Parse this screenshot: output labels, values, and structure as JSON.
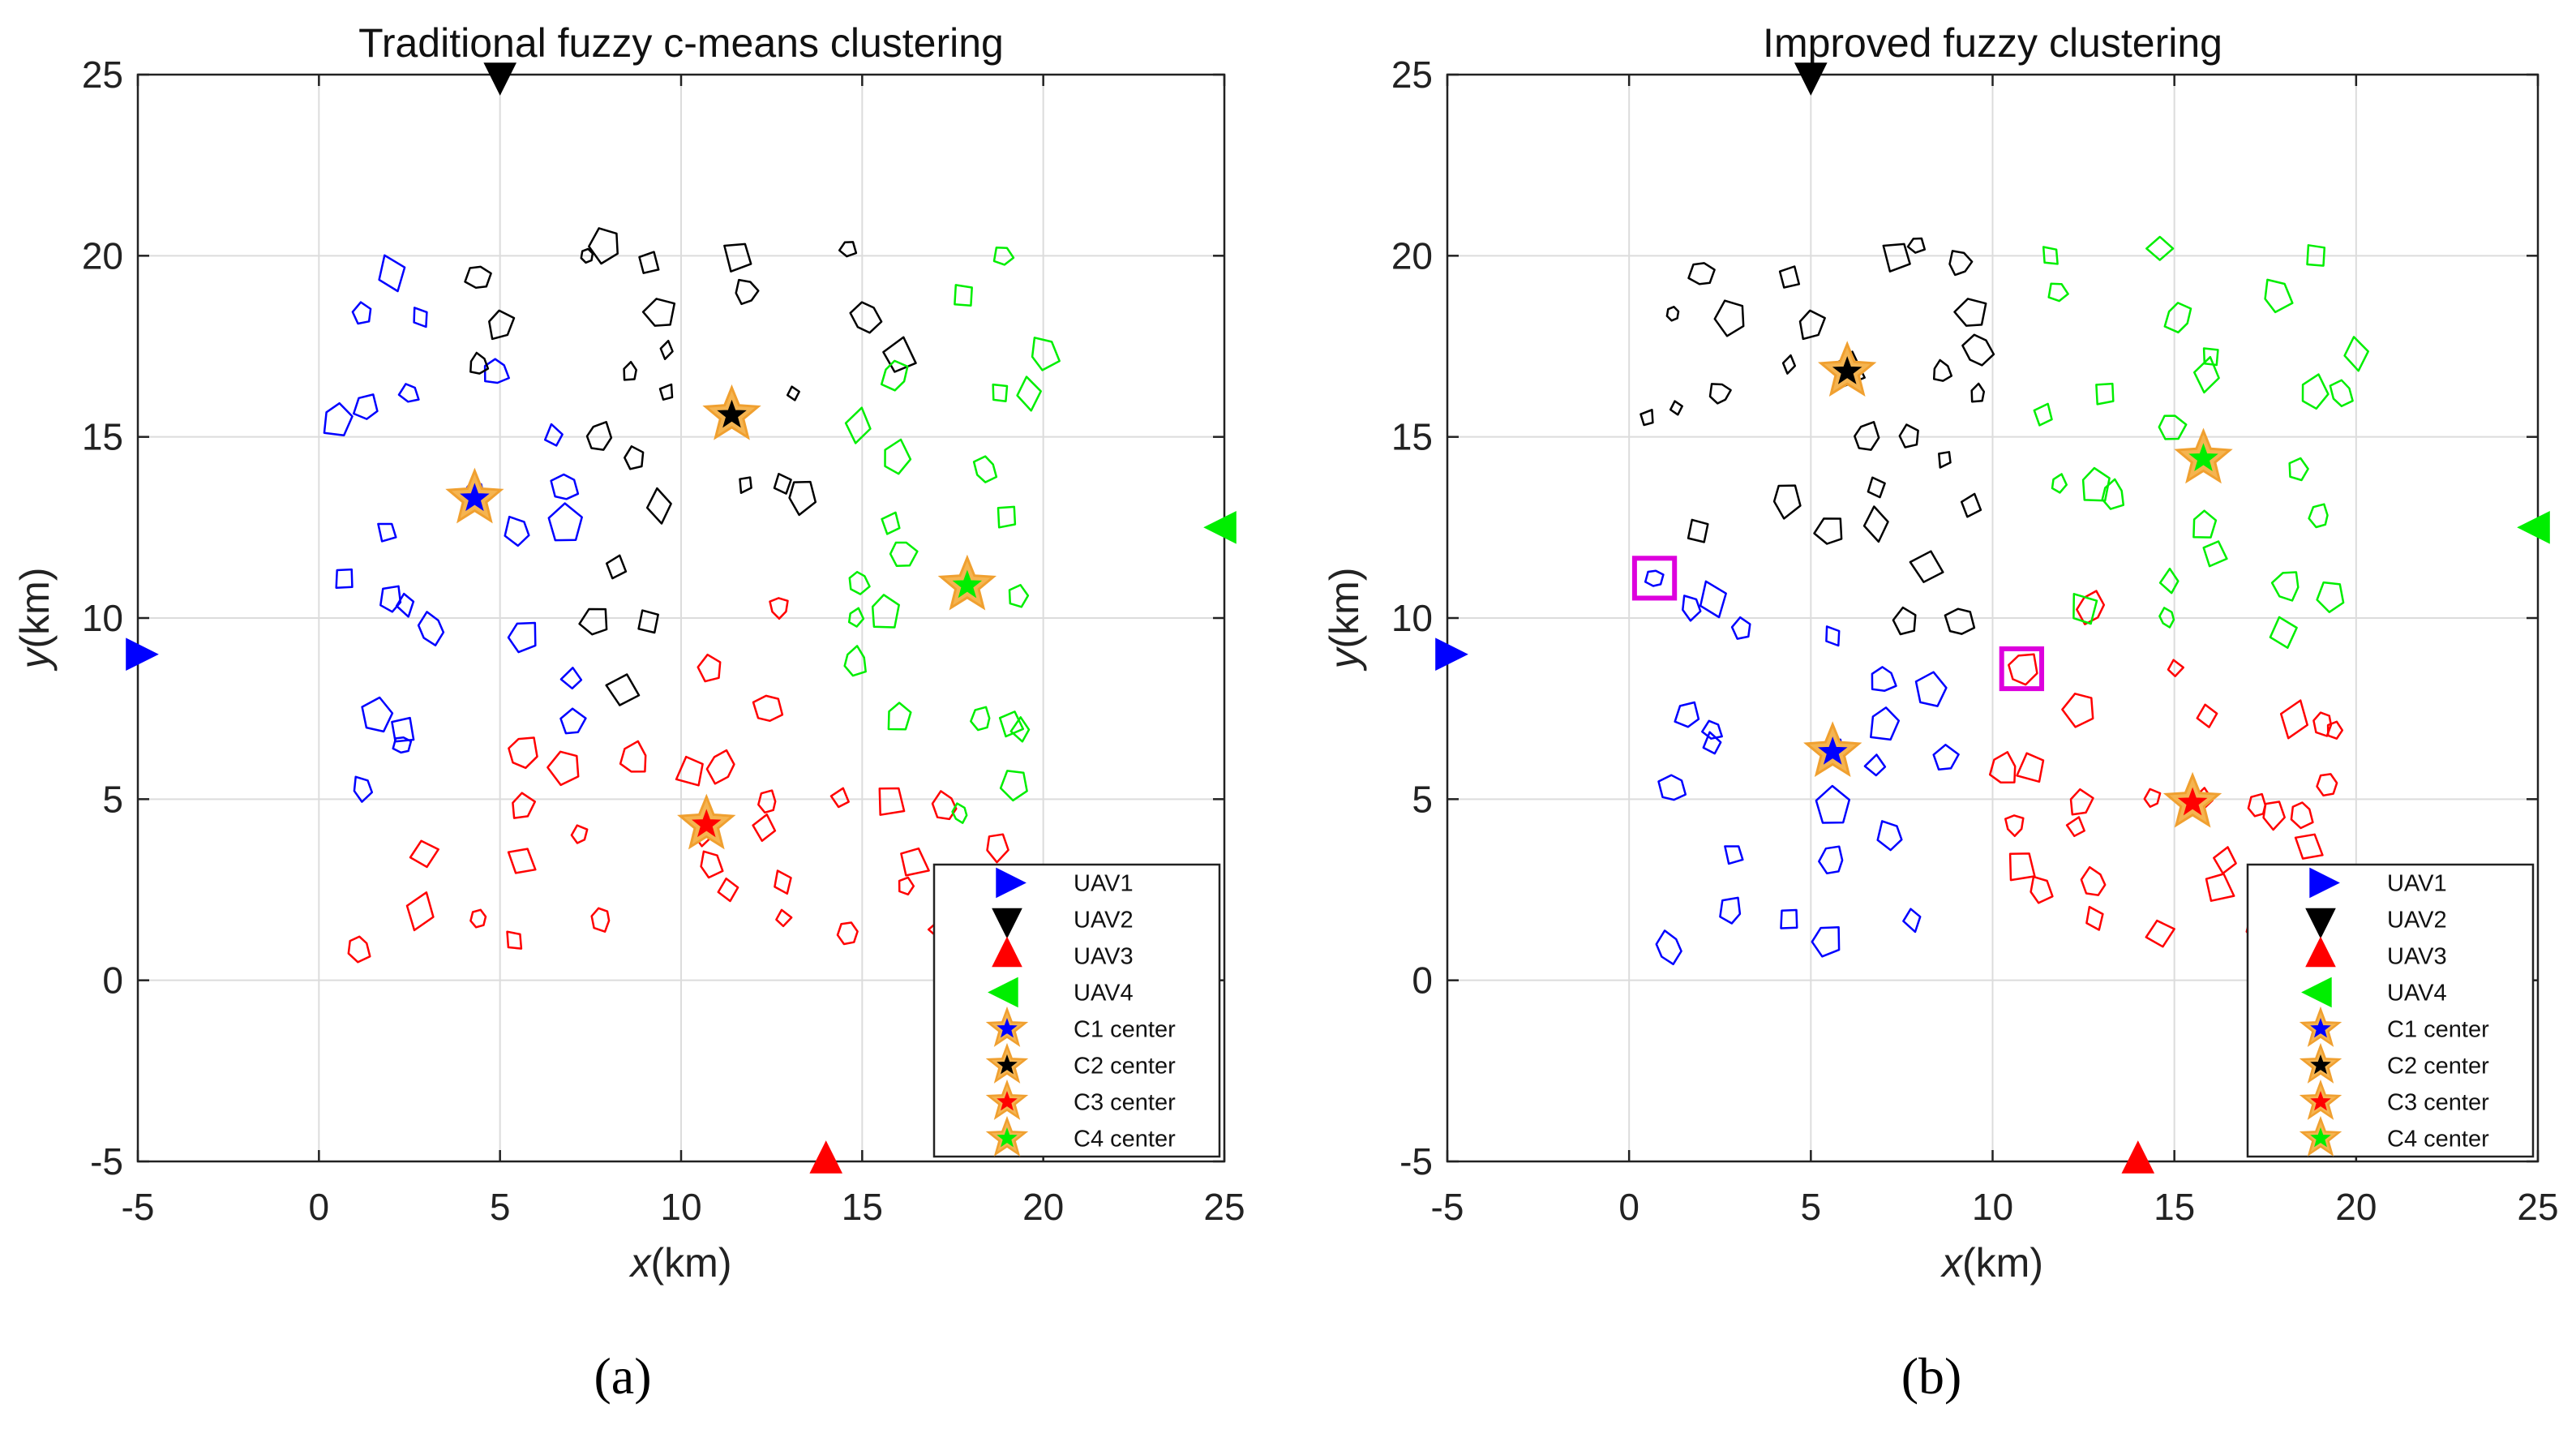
{
  "chart_data": [
    {
      "type": "scatter",
      "panel_label": "(a)",
      "title": "Traditional fuzzy c-means clustering",
      "xlabel_var": "x",
      "xlabel_unit": "(km)",
      "ylabel_var": "y",
      "ylabel_unit": "(km)",
      "xlim": [
        -5,
        25
      ],
      "ylim": [
        -5,
        25
      ],
      "xticks": [
        -5,
        0,
        5,
        10,
        15,
        20,
        25
      ],
      "yticks": [
        -5,
        0,
        5,
        10,
        15,
        20,
        25
      ],
      "grid": true,
      "legend_position": "bottom-right",
      "legend": [
        "UAV1",
        "UAV2",
        "UAV3",
        "UAV4",
        "C1 center",
        "C2 center",
        "C3 center",
        "C4 center"
      ],
      "colors": {
        "C1": "#0000ff",
        "C2": "#000000",
        "C3": "#ff0000",
        "C4": "#00ee00",
        "star_outline": "#f0a030",
        "highlight": "#dd00dd"
      },
      "uavs": [
        {
          "name": "UAV1",
          "x": -5,
          "y": 9,
          "direction": "right",
          "color": "#0000ff"
        },
        {
          "name": "UAV2",
          "x": 5,
          "y": 25,
          "direction": "down",
          "color": "#000000"
        },
        {
          "name": "UAV3",
          "x": 14,
          "y": -5,
          "direction": "up",
          "color": "#ff0000"
        },
        {
          "name": "UAV4",
          "x": 25,
          "y": 12.5,
          "direction": "left",
          "color": "#00ee00"
        }
      ],
      "centers": [
        {
          "name": "C1 center",
          "x": 4.3,
          "y": 13.3,
          "color": "#0000ff"
        },
        {
          "name": "C2 center",
          "x": 11.4,
          "y": 15.6,
          "color": "#000000"
        },
        {
          "name": "C3 center",
          "x": 10.7,
          "y": 4.3,
          "color": "#ff0000"
        },
        {
          "name": "C4 center",
          "x": 17.9,
          "y": 10.9,
          "color": "#00ee00"
        }
      ],
      "targets": [
        {
          "cluster": "C1",
          "points": [
            [
              2.0,
              19.5
            ],
            [
              1.2,
              18.4
            ],
            [
              2.8,
              18.3
            ],
            [
              4.9,
              16.8
            ],
            [
              0.5,
              15.5
            ],
            [
              1.3,
              15.8
            ],
            [
              2.5,
              16.2
            ],
            [
              6.5,
              15.0
            ],
            [
              6.8,
              13.6
            ],
            [
              6.8,
              12.6
            ],
            [
              5.5,
              12.4
            ],
            [
              4.3,
              13.3
            ],
            [
              1.9,
              12.4
            ],
            [
              0.7,
              11.1
            ],
            [
              2.0,
              10.5
            ],
            [
              2.4,
              10.4
            ],
            [
              3.1,
              9.7
            ],
            [
              5.6,
              9.5
            ],
            [
              7.0,
              8.3
            ],
            [
              7.0,
              7.1
            ],
            [
              1.6,
              7.3
            ],
            [
              2.3,
              6.9
            ],
            [
              2.3,
              6.5
            ],
            [
              1.2,
              5.3
            ]
          ]
        },
        {
          "cluster": "C2",
          "points": [
            [
              4.4,
              19.4
            ],
            [
              7.4,
              20.0
            ],
            [
              7.9,
              20.3
            ],
            [
              9.1,
              19.8
            ],
            [
              11.6,
              20.0
            ],
            [
              14.6,
              20.2
            ],
            [
              11.8,
              19.0
            ],
            [
              9.4,
              18.4
            ],
            [
              5.0,
              18.1
            ],
            [
              15.1,
              18.3
            ],
            [
              9.6,
              17.4
            ],
            [
              16.0,
              17.2
            ],
            [
              4.4,
              17.0
            ],
            [
              8.6,
              16.8
            ],
            [
              9.6,
              16.2
            ],
            [
              13.1,
              16.2
            ],
            [
              11.4,
              15.6
            ],
            [
              7.7,
              15.0
            ],
            [
              8.7,
              14.4
            ],
            [
              11.8,
              13.7
            ],
            [
              12.8,
              13.7
            ],
            [
              13.3,
              13.4
            ],
            [
              9.4,
              13.1
            ],
            [
              8.2,
              11.4
            ],
            [
              7.6,
              9.9
            ],
            [
              9.1,
              9.9
            ],
            [
              8.4,
              8.0
            ]
          ]
        },
        {
          "cluster": "C3",
          "points": [
            [
              10.8,
              8.6
            ],
            [
              12.4,
              7.5
            ],
            [
              5.6,
              6.3
            ],
            [
              6.8,
              5.9
            ],
            [
              8.7,
              6.1
            ],
            [
              10.3,
              5.8
            ],
            [
              11.1,
              5.9
            ],
            [
              12.7,
              10.3
            ],
            [
              5.6,
              4.8
            ],
            [
              7.2,
              4.0
            ],
            [
              10.6,
              4.0
            ],
            [
              12.4,
              4.9
            ],
            [
              14.4,
              5.0
            ],
            [
              15.8,
              5.0
            ],
            [
              17.3,
              4.8
            ],
            [
              12.3,
              4.2
            ],
            [
              10.8,
              3.2
            ],
            [
              12.8,
              2.7
            ],
            [
              16.4,
              3.3
            ],
            [
              2.9,
              3.5
            ],
            [
              5.6,
              3.3
            ],
            [
              4.4,
              1.7
            ],
            [
              12.8,
              1.7
            ],
            [
              11.3,
              2.5
            ],
            [
              2.8,
              1.9
            ],
            [
              7.8,
              1.7
            ],
            [
              16.2,
              2.6
            ],
            [
              14.6,
              1.3
            ],
            [
              18.7,
              3.7
            ],
            [
              1.1,
              0.9
            ],
            [
              5.4,
              1.1
            ],
            [
              17.2,
              1.4
            ]
          ]
        },
        {
          "cluster": "C4",
          "points": [
            [
              18.9,
              20.0
            ],
            [
              17.8,
              18.9
            ],
            [
              20.0,
              17.3
            ],
            [
              15.9,
              16.7
            ],
            [
              18.8,
              16.2
            ],
            [
              19.6,
              16.2
            ],
            [
              14.9,
              15.3
            ],
            [
              15.9,
              14.4
            ],
            [
              18.4,
              14.1
            ],
            [
              15.8,
              12.6
            ],
            [
              19.0,
              12.8
            ],
            [
              16.1,
              11.8
            ],
            [
              14.9,
              11.0
            ],
            [
              19.3,
              10.6
            ],
            [
              14.8,
              10.0
            ],
            [
              15.6,
              10.2
            ],
            [
              14.8,
              8.8
            ],
            [
              16.0,
              7.3
            ],
            [
              18.3,
              7.2
            ],
            [
              19.1,
              7.1
            ],
            [
              19.4,
              6.9
            ],
            [
              19.2,
              5.4
            ],
            [
              17.7,
              4.6
            ]
          ]
        }
      ],
      "highlights": []
    },
    {
      "type": "scatter",
      "panel_label": "(b)",
      "title": "Improved fuzzy  clustering",
      "xlabel_var": "x",
      "xlabel_unit": "(km)",
      "ylabel_var": "y",
      "ylabel_unit": "(km)",
      "xlim": [
        -5,
        25
      ],
      "ylim": [
        -5,
        25
      ],
      "xticks": [
        -5,
        0,
        5,
        10,
        15,
        20,
        25
      ],
      "yticks": [
        -5,
        0,
        5,
        10,
        15,
        20,
        25
      ],
      "grid": true,
      "legend_position": "bottom-right",
      "legend": [
        "UAV1",
        "UAV2",
        "UAV3",
        "UAV4",
        "C1 center",
        "C2 center",
        "C3 center",
        "C4 center"
      ],
      "colors": {
        "C1": "#0000ff",
        "C2": "#000000",
        "C3": "#ff0000",
        "C4": "#00ee00",
        "star_outline": "#f0a030",
        "highlight": "#dd00dd"
      },
      "uavs": [
        {
          "name": "UAV1",
          "x": -5,
          "y": 9,
          "direction": "right",
          "color": "#0000ff"
        },
        {
          "name": "UAV2",
          "x": 5,
          "y": 25,
          "direction": "down",
          "color": "#000000"
        },
        {
          "name": "UAV3",
          "x": 14,
          "y": -5,
          "direction": "up",
          "color": "#ff0000"
        },
        {
          "name": "UAV4",
          "x": 25,
          "y": 12.5,
          "direction": "left",
          "color": "#00ee00"
        }
      ],
      "centers": [
        {
          "name": "C1 center",
          "x": 5.6,
          "y": 6.3,
          "color": "#0000ff"
        },
        {
          "name": "C2 center",
          "x": 6.0,
          "y": 16.8,
          "color": "#000000"
        },
        {
          "name": "C3 center",
          "x": 15.5,
          "y": 4.9,
          "color": "#ff0000"
        },
        {
          "name": "C4 center",
          "x": 15.8,
          "y": 14.4,
          "color": "#00ee00"
        }
      ],
      "targets": [
        {
          "cluster": "C1",
          "points": [
            [
              2.3,
              10.5
            ],
            [
              3.1,
              9.7
            ],
            [
              5.6,
              9.5
            ],
            [
              7.0,
              8.3
            ],
            [
              7.0,
              7.1
            ],
            [
              1.6,
              7.3
            ],
            [
              2.3,
              6.9
            ],
            [
              2.3,
              6.5
            ],
            [
              1.2,
              5.3
            ],
            [
              5.6,
              4.8
            ],
            [
              7.2,
              4.0
            ],
            [
              5.6,
              3.3
            ],
            [
              2.9,
              3.5
            ],
            [
              4.4,
              1.7
            ],
            [
              2.8,
              1.9
            ],
            [
              7.8,
              1.7
            ],
            [
              1.1,
              0.9
            ],
            [
              5.4,
              1.1
            ],
            [
              6.8,
              5.9
            ],
            [
              8.7,
              6.1
            ],
            [
              8.3,
              8.0
            ],
            [
              5.6,
              6.3
            ],
            [
              0.7,
              11.1
            ],
            [
              1.7,
              10.3
            ]
          ]
        },
        {
          "cluster": "C2",
          "points": [
            [
              2.0,
              19.5
            ],
            [
              1.2,
              18.4
            ],
            [
              2.8,
              18.3
            ],
            [
              4.4,
              19.4
            ],
            [
              7.4,
              20.0
            ],
            [
              7.9,
              20.3
            ],
            [
              9.1,
              19.8
            ],
            [
              9.4,
              18.4
            ],
            [
              5.0,
              18.1
            ],
            [
              9.6,
              17.4
            ],
            [
              4.4,
              17.0
            ],
            [
              6.0,
              16.8
            ],
            [
              8.6,
              16.8
            ],
            [
              9.6,
              16.2
            ],
            [
              0.5,
              15.5
            ],
            [
              1.3,
              15.8
            ],
            [
              2.5,
              16.2
            ],
            [
              6.5,
              15.0
            ],
            [
              7.7,
              15.0
            ],
            [
              8.7,
              14.4
            ],
            [
              6.8,
              13.6
            ],
            [
              4.3,
              13.3
            ],
            [
              6.8,
              12.6
            ],
            [
              9.4,
              13.1
            ],
            [
              5.5,
              12.4
            ],
            [
              1.9,
              12.4
            ],
            [
              8.2,
              11.4
            ],
            [
              7.6,
              9.9
            ],
            [
              9.1,
              9.9
            ]
          ]
        },
        {
          "cluster": "C3",
          "points": [
            [
              10.8,
              8.6
            ],
            [
              12.4,
              7.5
            ],
            [
              10.3,
              5.8
            ],
            [
              11.1,
              5.9
            ],
            [
              12.7,
              10.3
            ],
            [
              10.6,
              4.3
            ],
            [
              12.4,
              4.9
            ],
            [
              14.4,
              5.0
            ],
            [
              15.8,
              5.0
            ],
            [
              17.3,
              4.8
            ],
            [
              12.3,
              4.2
            ],
            [
              10.8,
              3.2
            ],
            [
              12.8,
              2.7
            ],
            [
              16.4,
              3.3
            ],
            [
              11.3,
              2.5
            ],
            [
              12.8,
              1.7
            ],
            [
              16.2,
              2.6
            ],
            [
              14.6,
              1.3
            ],
            [
              18.7,
              3.7
            ],
            [
              17.2,
              1.4
            ],
            [
              15.0,
              8.6
            ],
            [
              15.9,
              7.3
            ],
            [
              18.3,
              7.2
            ],
            [
              19.1,
              7.1
            ],
            [
              19.4,
              6.9
            ],
            [
              19.2,
              5.4
            ],
            [
              17.7,
              4.6
            ],
            [
              18.5,
              4.6
            ]
          ]
        },
        {
          "cluster": "C4",
          "points": [
            [
              11.6,
              20.0
            ],
            [
              14.6,
              20.2
            ],
            [
              11.8,
              19.0
            ],
            [
              18.9,
              20.0
            ],
            [
              17.8,
              18.9
            ],
            [
              15.1,
              18.3
            ],
            [
              16.0,
              17.2
            ],
            [
              20.0,
              17.3
            ],
            [
              15.9,
              16.7
            ],
            [
              18.8,
              16.2
            ],
            [
              19.6,
              16.2
            ],
            [
              11.4,
              15.6
            ],
            [
              13.1,
              16.2
            ],
            [
              14.9,
              15.3
            ],
            [
              15.8,
              14.4
            ],
            [
              18.4,
              14.1
            ],
            [
              11.8,
              13.7
            ],
            [
              12.8,
              13.7
            ],
            [
              13.3,
              13.4
            ],
            [
              15.8,
              12.6
            ],
            [
              19.0,
              12.8
            ],
            [
              16.1,
              11.8
            ],
            [
              14.9,
              11.0
            ],
            [
              19.3,
              10.6
            ],
            [
              14.8,
              10.0
            ],
            [
              12.5,
              10.2
            ],
            [
              18.1,
              10.9
            ],
            [
              18.0,
              9.6
            ]
          ]
        }
      ],
      "highlights": [
        {
          "x": 0.7,
          "y": 11.1,
          "half_km": 0.55
        },
        {
          "x": 10.8,
          "y": 8.6,
          "half_km": 0.55
        }
      ]
    }
  ]
}
